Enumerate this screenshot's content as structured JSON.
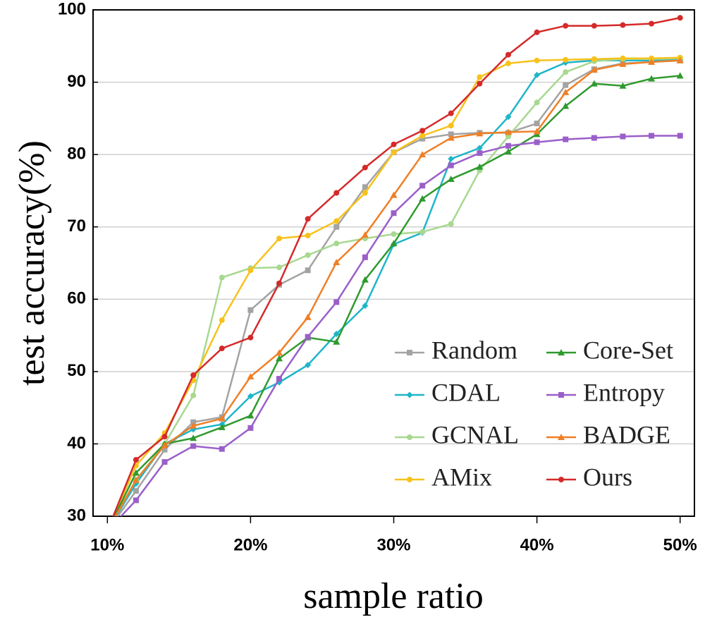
{
  "chart_data": {
    "type": "line",
    "x_label": "sample ratio",
    "y_label": "test accuracy(%)",
    "x": [
      10,
      12,
      14,
      16,
      18,
      20,
      22,
      24,
      26,
      28,
      30,
      32,
      34,
      36,
      38,
      40,
      42,
      44,
      46,
      48,
      50
    ],
    "xlim": [
      9,
      51
    ],
    "ylim": [
      30,
      100
    ],
    "xticks": [
      {
        "value": 10,
        "label": "10%"
      },
      {
        "value": 20,
        "label": "20%"
      },
      {
        "value": 30,
        "label": "30%"
      },
      {
        "value": 40,
        "label": "40%"
      },
      {
        "value": 50,
        "label": "50%"
      }
    ],
    "yticks": [
      30,
      40,
      50,
      60,
      70,
      80,
      90,
      100
    ],
    "grid": true,
    "legend": "lower right",
    "series": [
      {
        "name": "Random",
        "color": "#a3a3a3",
        "marker": "square",
        "values": [
          28,
          33.5,
          39.2,
          43,
          43.7,
          58.5,
          62,
          64,
          70,
          75.5,
          80.3,
          82.2,
          82.8,
          83,
          83,
          84.3,
          89.6,
          91.8,
          92.6,
          92.8,
          93.0
        ]
      },
      {
        "name": "CDAL",
        "color": "#1fb5c9",
        "marker": "diamond",
        "values": [
          28,
          34.5,
          40,
          42,
          42.7,
          46.6,
          48.5,
          50.9,
          55.2,
          59.1,
          67.6,
          69.2,
          79.4,
          80.9,
          85.2,
          91,
          92.7,
          93,
          93,
          93,
          93.1
        ]
      },
      {
        "name": "GCNAL",
        "color": "#a8d890",
        "marker": "circle",
        "values": [
          28,
          35,
          40,
          46.7,
          63,
          64.3,
          64.4,
          66.1,
          67.7,
          68.4,
          69,
          69.3,
          70.4,
          77.8,
          82.5,
          87.2,
          91.4,
          92.9,
          93.2,
          93.2,
          93.3
        ]
      },
      {
        "name": "AMix",
        "color": "#f7c21d",
        "marker": "circle",
        "values": [
          28,
          37,
          41.5,
          48.8,
          57.1,
          64,
          68.4,
          68.8,
          70.8,
          74.7,
          80.3,
          82.6,
          84,
          90.7,
          92.6,
          93,
          93.1,
          93.2,
          93.3,
          93.3,
          93.4
        ]
      },
      {
        "name": "Core-Set",
        "color": "#2e9a2e",
        "marker": "triangle",
        "values": [
          28,
          36,
          40,
          40.8,
          42.3,
          43.9,
          51.8,
          54.7,
          54.1,
          62.7,
          67.7,
          73.9,
          76.6,
          78.3,
          80.4,
          82.8,
          86.7,
          89.8,
          89.5,
          90.5,
          90.9
        ]
      },
      {
        "name": "Entropy",
        "color": "#9a5fc9",
        "marker": "square",
        "values": [
          28,
          32.2,
          37.5,
          39.7,
          39.3,
          42.2,
          49,
          54.8,
          59.6,
          65.8,
          71.9,
          75.7,
          78.5,
          80.2,
          81.2,
          81.7,
          82.1,
          82.3,
          82.5,
          82.6,
          82.6
        ]
      },
      {
        "name": "BADGE",
        "color": "#f07f26",
        "marker": "triangle",
        "values": [
          28,
          35,
          39.8,
          42.5,
          43.5,
          49.3,
          52.6,
          57.5,
          65.1,
          68.9,
          74.4,
          80,
          82.3,
          82.9,
          83.1,
          83.2,
          88.6,
          91.7,
          92.5,
          92.8,
          93.0
        ]
      },
      {
        "name": "Ours",
        "color": "#d42a2a",
        "marker": "circle",
        "values": [
          28,
          37.8,
          41,
          49.5,
          53.2,
          54.7,
          62.2,
          71.1,
          74.7,
          78.2,
          81.4,
          83.3,
          85.7,
          89.8,
          93.8,
          96.9,
          97.8,
          97.8,
          97.9,
          98.1,
          98.9
        ]
      }
    ]
  }
}
